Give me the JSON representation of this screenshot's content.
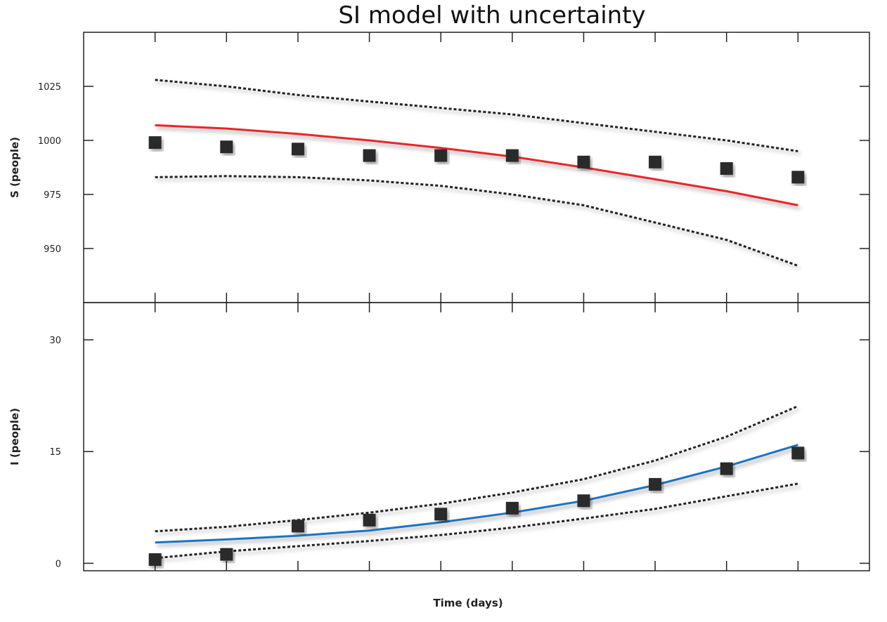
{
  "chart_data": {
    "type": "line",
    "title": "SI model with uncertainty",
    "xlabel": "Time (days)",
    "x": [
      0,
      1,
      2,
      3,
      4,
      5,
      6,
      7,
      8,
      9
    ],
    "xlim": [
      -1,
      10
    ],
    "grid": false,
    "panels": [
      {
        "id": "S",
        "ylabel": "S (people)",
        "ylim": [
          925,
          1050
        ],
        "yticks": [
          950,
          975,
          1000,
          1025
        ],
        "model_color": "#e8252a",
        "observed": [
          999,
          997,
          996,
          993,
          993,
          993,
          990,
          990,
          987,
          983
        ],
        "model": [
          1007,
          1005.5,
          1003,
          1000,
          996.5,
          992.5,
          987.5,
          982,
          976.5,
          970
        ],
        "upper": [
          1028,
          1025,
          1021,
          1018,
          1015,
          1012,
          1008,
          1004,
          1000,
          995
        ],
        "lower": [
          983,
          983.5,
          983,
          981.5,
          979,
          975,
          970,
          962,
          954,
          942
        ]
      },
      {
        "id": "I",
        "ylabel": "I (people)",
        "ylim": [
          -1,
          35
        ],
        "yticks": [
          0,
          15,
          30
        ],
        "model_color": "#1a73c4",
        "observed": [
          0.5,
          1.2,
          5,
          5.8,
          6.6,
          7.4,
          8.4,
          10.6,
          12.7,
          14.8
        ],
        "model": [
          2.8,
          3.2,
          3.7,
          4.4,
          5.5,
          6.8,
          8.4,
          10.5,
          13,
          15.9
        ],
        "upper": [
          4.3,
          4.9,
          5.8,
          6.8,
          8,
          9.5,
          11.3,
          13.8,
          17,
          21.1
        ],
        "lower": [
          0.7,
          1.6,
          2.3,
          3,
          3.8,
          4.8,
          6,
          7.3,
          9,
          10.7
        ]
      }
    ]
  }
}
